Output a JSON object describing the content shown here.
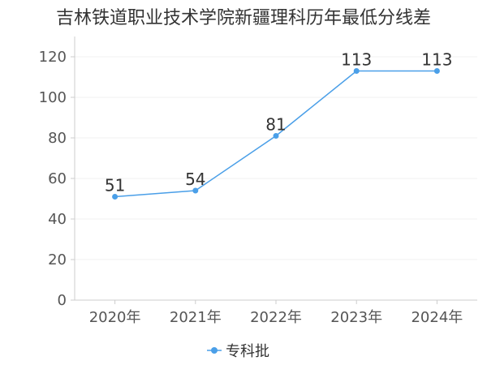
{
  "chart_data": {
    "type": "line",
    "title": "吉林铁道职业技术学院新疆理科历年最低分线差",
    "categories": [
      "2020年",
      "2021年",
      "2022年",
      "2023年",
      "2024年"
    ],
    "series": [
      {
        "name": "专科批",
        "values": [
          51,
          54,
          81,
          113,
          113
        ],
        "color": "#4a9fe8"
      }
    ],
    "ylim": [
      0,
      130
    ],
    "yticks": [
      0,
      20,
      40,
      60,
      80,
      100,
      120
    ],
    "grid": true,
    "legend": "bottom"
  }
}
